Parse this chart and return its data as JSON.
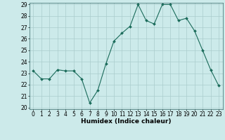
{
  "x": [
    0,
    1,
    2,
    3,
    4,
    5,
    6,
    7,
    8,
    9,
    10,
    11,
    12,
    13,
    14,
    15,
    16,
    17,
    18,
    19,
    20,
    21,
    22,
    23
  ],
  "y": [
    23.2,
    22.5,
    22.5,
    23.3,
    23.2,
    23.2,
    22.5,
    20.4,
    21.5,
    23.8,
    25.8,
    26.5,
    27.1,
    29.0,
    27.6,
    27.3,
    29.0,
    29.0,
    27.6,
    27.8,
    26.7,
    25.0,
    23.3,
    21.9
  ],
  "line_color": "#1a6b5a",
  "marker": "D",
  "marker_size": 2.0,
  "bg_color": "#cceaea",
  "grid_color": "#aacccc",
  "xlabel": "Humidex (Indice chaleur)",
  "ylim_min": 20,
  "ylim_max": 29,
  "xlim_min": -0.5,
  "xlim_max": 23.5,
  "yticks": [
    20,
    21,
    22,
    23,
    24,
    25,
    26,
    27,
    28,
    29
  ],
  "xticks": [
    0,
    1,
    2,
    3,
    4,
    5,
    6,
    7,
    8,
    9,
    10,
    11,
    12,
    13,
    14,
    15,
    16,
    17,
    18,
    19,
    20,
    21,
    22,
    23
  ],
  "tick_fontsize": 5.5,
  "xlabel_fontsize": 6.5
}
